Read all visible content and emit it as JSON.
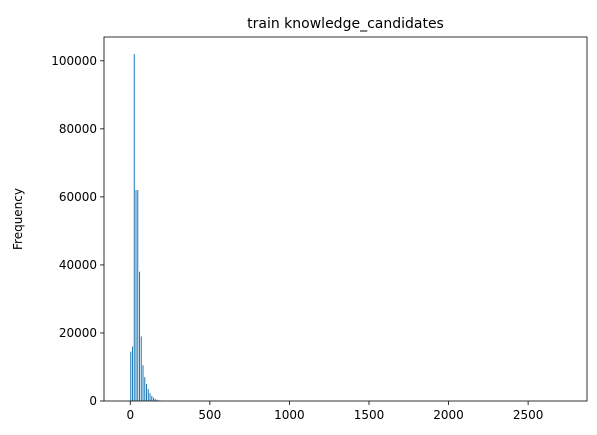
{
  "chart_data": {
    "type": "bar",
    "title": "train knowledge_candidates",
    "xlabel": "",
    "ylabel": "Frequency",
    "xlim": [
      -165,
      2870
    ],
    "ylim": [
      0,
      107000
    ],
    "xticks": [
      0,
      500,
      1000,
      1500,
      2000,
      2500
    ],
    "yticks": [
      0,
      20000,
      40000,
      60000,
      80000,
      100000
    ],
    "grid": false,
    "legend": "none",
    "bar_color": "#1f77b4",
    "bin_width": 11,
    "bins": [
      {
        "x": 0,
        "value": 14500
      },
      {
        "x": 11,
        "value": 16000
      },
      {
        "x": 22,
        "value": 102000
      },
      {
        "x": 33,
        "value": 62000
      },
      {
        "x": 44,
        "value": 62000
      },
      {
        "x": 55,
        "value": 38000
      },
      {
        "x": 66,
        "value": 19000
      },
      {
        "x": 77,
        "value": 10500
      },
      {
        "x": 88,
        "value": 7000
      },
      {
        "x": 99,
        "value": 5000
      },
      {
        "x": 110,
        "value": 3500
      },
      {
        "x": 121,
        "value": 2300
      },
      {
        "x": 132,
        "value": 1500
      },
      {
        "x": 143,
        "value": 1000
      },
      {
        "x": 154,
        "value": 600
      },
      {
        "x": 165,
        "value": 350
      },
      {
        "x": 176,
        "value": 200
      },
      {
        "x": 187,
        "value": 120
      },
      {
        "x": 198,
        "value": 60
      },
      {
        "x": 209,
        "value": 30
      }
    ]
  }
}
